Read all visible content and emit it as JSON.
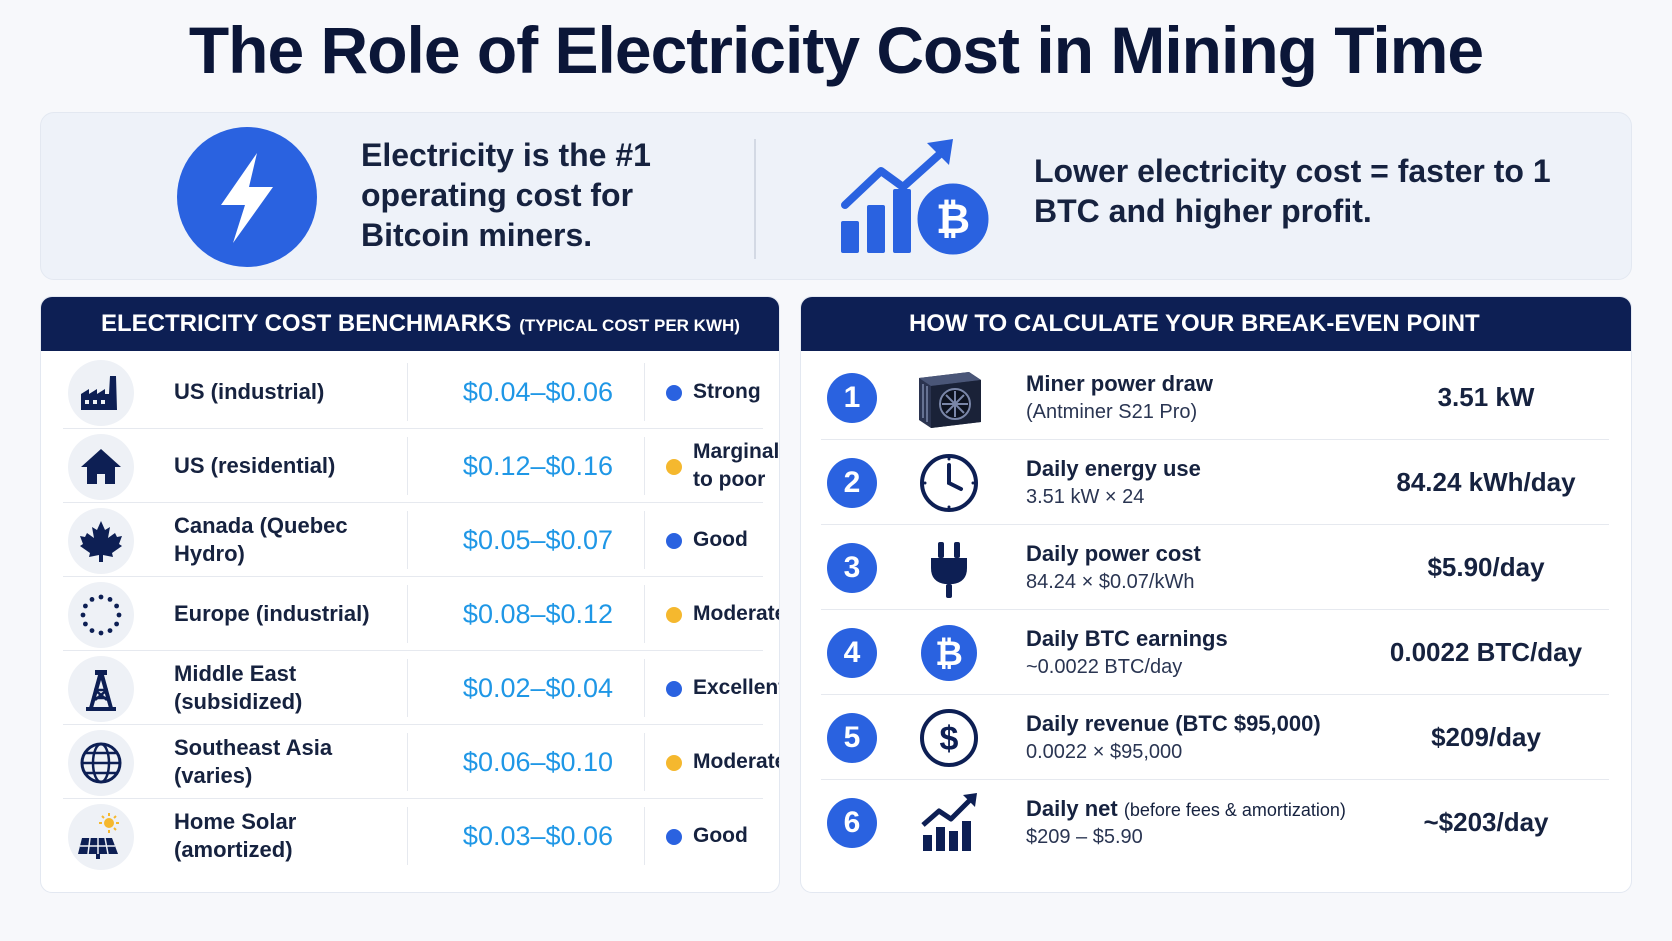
{
  "title": "The Role of Electricity Cost in Mining Time",
  "summary": {
    "left_text": "Electricity is the #1 operating cost for Bitcoin miners.",
    "right_text": "Lower electricity cost = faster to 1 BTC and higher profit."
  },
  "benchmarks": {
    "header": "ELECTRICITY COST BENCHMARKS",
    "subheader": "(TYPICAL COST PER KWH)",
    "rows": [
      {
        "region": "US (industrial)",
        "price": "$0.04–$0.06",
        "rating": "Strong",
        "rating_color": "#2a62e0",
        "icon": "factory-icon"
      },
      {
        "region": "US (residential)",
        "price": "$0.12–$0.16",
        "rating": "Marginal to poor",
        "rating_color": "#f5b82e",
        "icon": "house-icon"
      },
      {
        "region": "Canada (Quebec Hydro)",
        "price": "$0.05–$0.07",
        "rating": "Good",
        "rating_color": "#2a62e0",
        "icon": "maple-leaf-icon"
      },
      {
        "region": "Europe (industrial)",
        "price": "$0.08–$0.12",
        "rating": "Moderate",
        "rating_color": "#f5b82e",
        "icon": "eu-stars-icon"
      },
      {
        "region": "Middle East (subsidized)",
        "price": "$0.02–$0.04",
        "rating": "Excellent",
        "rating_color": "#2a62e0",
        "icon": "oil-derrick-icon"
      },
      {
        "region": "Southeast Asia (varies)",
        "price": "$0.06–$0.10",
        "rating": "Moderate",
        "rating_color": "#f5b82e",
        "icon": "globe-icon"
      },
      {
        "region": "Home Solar (amortized)",
        "price": "$0.03–$0.06",
        "rating": "Good",
        "rating_color": "#2a62e0",
        "icon": "solar-panel-icon"
      }
    ]
  },
  "breakeven": {
    "header": "HOW TO CALCULATE YOUR BREAK-EVEN POINT",
    "steps": [
      {
        "num": "1",
        "title": "Miner power draw",
        "note": "",
        "detail": "(Antminer S21 Pro)",
        "value": "3.51 kW",
        "icon": "asic-miner-icon"
      },
      {
        "num": "2",
        "title": "Daily energy use",
        "note": "",
        "detail": "3.51 kW × 24",
        "value": "84.24 kWh/day",
        "icon": "clock-icon"
      },
      {
        "num": "3",
        "title": "Daily power cost",
        "note": "",
        "detail": "84.24 × $0.07/kWh",
        "value": "$5.90/day",
        "icon": "plug-icon"
      },
      {
        "num": "4",
        "title": "Daily BTC earnings",
        "note": "",
        "detail": "~0.0022 BTC/day",
        "value": "0.0022 BTC/day",
        "icon": "bitcoin-icon"
      },
      {
        "num": "5",
        "title": "Daily revenue (BTC $95,000)",
        "note": "",
        "detail": "0.0022 × $95,000",
        "value": "$209/day",
        "icon": "dollar-icon"
      },
      {
        "num": "6",
        "title": "Daily net",
        "note": "(before fees & amortization)",
        "detail": "$209 – $5.90",
        "value": "~$203/day",
        "icon": "growth-chart-icon"
      }
    ]
  }
}
